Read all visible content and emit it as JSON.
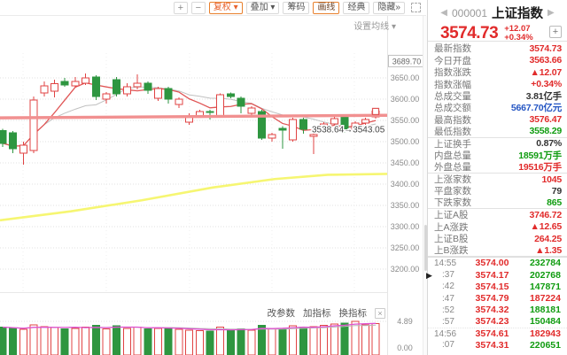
{
  "toolbar": {
    "zoom_in": "+",
    "zoom_out": "−",
    "buttons": [
      {
        "label": "复权 ▾",
        "style": "orange"
      },
      {
        "label": "叠加 ▾",
        "style": ""
      },
      {
        "label": "筹码",
        "style": ""
      },
      {
        "label": "画线",
        "style": "orange-border"
      },
      {
        "label": "经典",
        "style": ""
      },
      {
        "label": "隐藏»",
        "style": ""
      }
    ]
  },
  "chart": {
    "ma_settings": "设置均线 ▾"
  },
  "subchart": {
    "change_params": "改参数",
    "add_indicator": "加指标",
    "switch_indicator": "换指标",
    "close": "×"
  },
  "misc": {
    "collapse_arrow": "▶"
  },
  "chart_data": {
    "type": "candlestick+volume",
    "symbol": "000001 上证指数",
    "y_axis": {
      "window_max": 3689.7,
      "window_max_label": "3689.70",
      "ticks": [
        3650,
        3600,
        3550,
        3500,
        3450,
        3400,
        3350,
        3300,
        3250,
        3200
      ]
    },
    "candles": [
      [
        3526,
        3530,
        3487,
        3496
      ],
      [
        3521,
        3525,
        3473,
        3483
      ],
      [
        3473,
        3500,
        3446,
        3492
      ],
      [
        3479,
        3606,
        3473,
        3598
      ],
      [
        3615,
        3642,
        3606,
        3631
      ],
      [
        3619,
        3646,
        3604,
        3636
      ],
      [
        3642,
        3650,
        3629,
        3633
      ],
      [
        3631,
        3652,
        3627,
        3642
      ],
      [
        3638,
        3660,
        3633,
        3650
      ],
      [
        3652,
        3656,
        3598,
        3606
      ],
      [
        3600,
        3617,
        3590,
        3613
      ],
      [
        3646,
        3652,
        3606,
        3612
      ],
      [
        3612,
        3638,
        3606,
        3629
      ],
      [
        3629,
        3658,
        3623,
        3638
      ],
      [
        3638,
        3642,
        3612,
        3621
      ],
      [
        3602,
        3629,
        3596,
        3625
      ],
      [
        3625,
        3629,
        3590,
        3600
      ],
      [
        3588,
        3604,
        3579,
        3600
      ],
      [
        3546,
        3567,
        3540,
        3558
      ],
      [
        3560,
        3575,
        3556,
        3571
      ],
      [
        3571,
        3575,
        3552,
        3569
      ],
      [
        3560,
        3614,
        3556,
        3610
      ],
      [
        3612,
        3616,
        3602,
        3606
      ],
      [
        3602,
        3606,
        3567,
        3583
      ],
      [
        3567,
        3583,
        3560,
        3579
      ],
      [
        3571,
        3575,
        3504,
        3508
      ],
      [
        3508,
        3521,
        3500,
        3517
      ],
      [
        3531,
        3536,
        3483,
        3527
      ],
      [
        3504,
        3556,
        3500,
        3552
      ],
      [
        3552,
        3556,
        3519,
        3529
      ],
      [
        3513,
        3521,
        3471,
        3517
      ],
      [
        3533,
        3546,
        3529,
        3542
      ],
      [
        3542,
        3558,
        3538,
        3554
      ],
      [
        3558,
        3562,
        3521,
        3527
      ],
      [
        3527,
        3548,
        3523,
        3544
      ],
      [
        3544,
        3556,
        3540,
        3552
      ],
      [
        3558,
        3576,
        3554,
        3572
      ]
    ],
    "ma_periods": [
      5,
      10
    ],
    "long_ma_yellow": [
      [
        0,
        3315
      ],
      [
        80,
        3336
      ],
      [
        160,
        3362
      ],
      [
        240,
        3392
      ],
      [
        310,
        3412
      ],
      [
        370,
        3422
      ],
      [
        437,
        3424
      ]
    ],
    "drawn_line": {
      "label": "3538.64→3543.05",
      "line_price": [
        3556,
        3562
      ],
      "handle": true
    },
    "volumes": [
      3.9,
      3.7,
      3.5,
      4.3,
      4.0,
      3.8,
      3.6,
      3.7,
      3.9,
      4.2,
      3.6,
      4.1,
      3.7,
      3.9,
      3.6,
      3.7,
      3.8,
      3.5,
      3.4,
      3.3,
      3.2,
      3.9,
      3.3,
      3.6,
      3.4,
      4.2,
      3.7,
      3.6,
      4.1,
      3.9,
      4.0,
      4.2,
      4.4,
      4.6,
      4.89,
      4.3,
      4.5
    ],
    "volume_axis": {
      "max": 4.89,
      "max_label": "4.89",
      "min_label": "0.00"
    }
  },
  "panel": {
    "prev": "◀",
    "next": "▶",
    "code": "000001",
    "name": "上证指数",
    "price": "3574.73",
    "change": "+12.07",
    "change_pct": "+0.34%",
    "add": "+",
    "rows": [
      {
        "label": "最新指数",
        "value": "3574.73",
        "color": "red"
      },
      {
        "label": "今日开盘",
        "value": "3563.66",
        "color": "red"
      },
      {
        "label": "指数涨跌",
        "value": "▲12.07",
        "color": "red"
      },
      {
        "label": "指数涨幅",
        "value": "+0.34%",
        "color": "red"
      },
      {
        "label": "总成交量",
        "value": "3.81亿手",
        "color": "dark"
      },
      {
        "label": "总成交额",
        "value": "5667.70亿元",
        "color": "blue"
      },
      {
        "label": "最高指数",
        "value": "3576.47",
        "color": "red"
      },
      {
        "label": "最低指数",
        "value": "3558.29",
        "color": "green",
        "divider": true
      },
      {
        "label": "上证换手",
        "value": "0.87%",
        "color": "dark"
      },
      {
        "label": "内盘总量",
        "value": "18591万手",
        "color": "green"
      },
      {
        "label": "外盘总量",
        "value": "19516万手",
        "color": "red",
        "divider": true
      },
      {
        "label": "上涨家数",
        "value": "1045",
        "color": "red"
      },
      {
        "label": "平盘家数",
        "value": "79",
        "color": "dark"
      },
      {
        "label": "下跌家数",
        "value": "865",
        "color": "green",
        "divider": true
      },
      {
        "label": "上证A股",
        "value": "3746.72",
        "color": "red"
      },
      {
        "label": "上A涨跌",
        "value": "▲12.65",
        "color": "red"
      },
      {
        "label": "上证B股",
        "value": "264.25",
        "color": "red"
      },
      {
        "label": "上B涨跌",
        "value": "▲1.35",
        "color": "red",
        "divider": true
      }
    ],
    "ticks": [
      {
        "time": "14:55",
        "price": "3574.00",
        "vol": "232784",
        "vol_color": "green",
        "group": true
      },
      {
        "time": ":37",
        "price": "3574.17",
        "vol": "202768",
        "vol_color": "green"
      },
      {
        "time": ":42",
        "price": "3574.15",
        "vol": "147871",
        "vol_color": "green"
      },
      {
        "time": ":47",
        "price": "3574.79",
        "vol": "187224",
        "vol_color": "red"
      },
      {
        "time": ":52",
        "price": "3574.32",
        "vol": "188181",
        "vol_color": "green"
      },
      {
        "time": ":57",
        "price": "3574.23",
        "vol": "150484",
        "vol_color": "green"
      },
      {
        "time": "14:56",
        "price": "3574.61",
        "vol": "182943",
        "vol_color": "red",
        "group": true
      },
      {
        "time": ":07",
        "price": "3574.31",
        "vol": "220651",
        "vol_color": "green"
      }
    ]
  },
  "colors": {
    "up": "#e04343",
    "down": "#2e9640",
    "ma_fast": "#e05555",
    "ma_slow": "#c0c0c0",
    "ma_long": "#f6f66a",
    "vol_ma": "#e052d0",
    "drawn_line": "#f19090",
    "accent_orange": "#e8622d",
    "value_blue": "#2455c3"
  }
}
